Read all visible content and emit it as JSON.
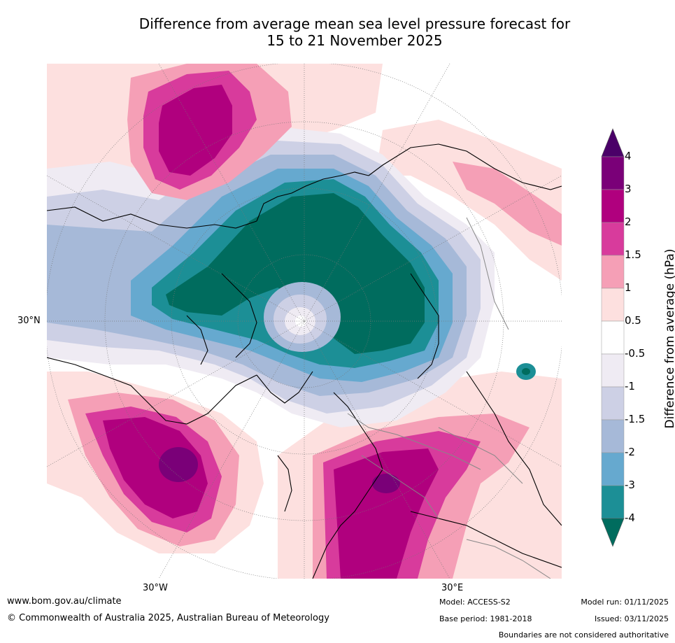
{
  "title": {
    "line1": "Difference from average mean sea level pressure forecast for",
    "line2": "15 to 21 November 2025"
  },
  "axis_labels": {
    "lat_30n": "30°N",
    "lon_30w": "30°W",
    "lon_30e": "30°E"
  },
  "colorbar": {
    "title": "Difference from average (hPa)",
    "ticks": [
      "4",
      "3",
      "2",
      "1.5",
      "1",
      "0.5",
      "-0.5",
      "-1",
      "-1.5",
      "-2",
      "-3",
      "-4"
    ],
    "colors": [
      "#4a0068",
      "#7a0078",
      "#b0007e",
      "#d83b9c",
      "#f59fb6",
      "#fde0df",
      "#ffffff",
      "#efebf3",
      "#cdd0e5",
      "#a6b9d8",
      "#66a9cf",
      "#1c8f96",
      "#006c5e"
    ]
  },
  "footer": {
    "url": "www.bom.gov.au/climate",
    "copyright": "© Commonwealth of Australia 2025, Australian Bureau of Meteorology",
    "model": "Model: ACCESS-S2",
    "base_period": "Base period: 1981-2018",
    "model_run": "Model run: 01/11/2025",
    "issued": "Issued: 03/11/2025",
    "disclaimer": "Boundaries are not considered authoritative"
  }
}
